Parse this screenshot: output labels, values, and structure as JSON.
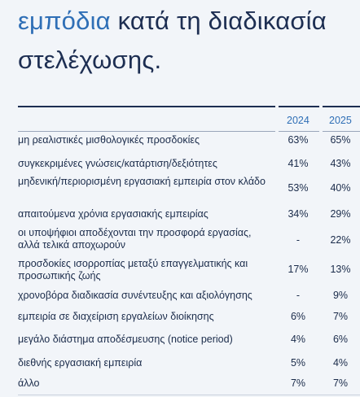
{
  "heading": {
    "highlight": "εμπόδια",
    "line1_rest": " κατά τη διαδικασία",
    "line2": "στελέχωσης."
  },
  "table": {
    "columns": [
      "2024",
      "2025"
    ],
    "rows": [
      {
        "label": "μη ρεαλιστικές μισθολογικές προσδοκίες",
        "v2024": "63%",
        "v2025": "65%"
      },
      {
        "label": "συγκεκριμένες γνώσεις/κατάρτιση/δεξιότητες",
        "v2024": "41%",
        "v2025": "43%"
      },
      {
        "label": "μηδενική/περιορισμένη εργασιακή εμπειρία στον κλάδο",
        "v2024": "53%",
        "v2025": "40%"
      },
      {
        "label": "απαιτούμενα χρόνια εργασιακής εμπειρίας",
        "v2024": "34%",
        "v2025": "29%"
      },
      {
        "label": "οι υποψήφιοι αποδέχονται την προσφορά εργασίας, αλλά τελικά αποχωρούν",
        "v2024": "-",
        "v2025": "22%"
      },
      {
        "label": "προσδοκίες ισορροπίας μεταξύ επαγγελματικής και προσωπικής ζωής",
        "v2024": "17%",
        "v2025": "13%"
      },
      {
        "label": "χρονοβόρα διαδικασία συνέντευξης και αξιολόγησης",
        "v2024": "-",
        "v2025": "9%"
      },
      {
        "label": "εμπειρία σε διαχείριση εργαλείων διοίκησης",
        "v2024": "6%",
        "v2025": "7%"
      },
      {
        "label": "μεγάλο διάστημα αποδέσμευσης (notice period)",
        "v2024": "4%",
        "v2025": "6%"
      },
      {
        "label": "διεθνής εργασιακή εμπειρία",
        "v2024": "5%",
        "v2025": "4%"
      },
      {
        "label": "άλλο",
        "v2024": "7%",
        "v2025": "7%"
      }
    ]
  }
}
